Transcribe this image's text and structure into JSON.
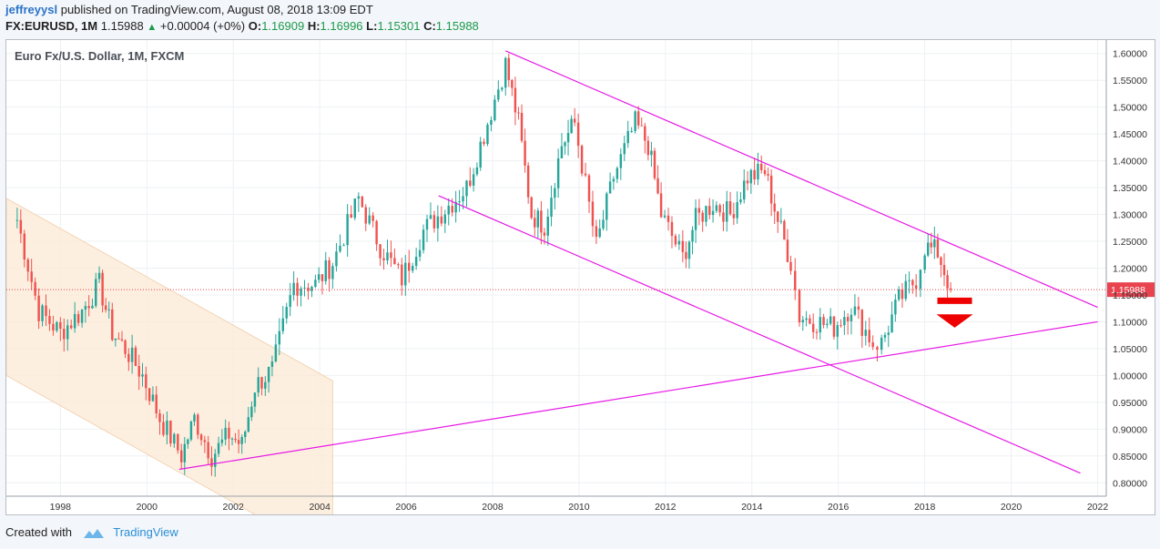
{
  "header": {
    "author": "jeffreyysl",
    "published": "published on TradingView.com, August 08, 2018 13:09 EDT",
    "symbol": "FX:EURUSD, 1M",
    "last": "1.15988",
    "change": "+0.00004 (+0%)",
    "o_label": "O:",
    "o_value": "1.16909",
    "h_label": "H:",
    "h_value": "1.16996",
    "l_label": "L:",
    "l_value": "1.15301",
    "c_label": "C:",
    "c_value": "1.15988"
  },
  "footer": {
    "created_with": "Created with",
    "brand": "TradingView"
  },
  "colors": {
    "up": "#26a69a",
    "down": "#ef5350",
    "trendline": "#e619e6",
    "channel_fill": "#fdebd7",
    "price_tag": "#e8434f"
  },
  "chart_data": {
    "type": "candlestick",
    "title": "Euro Fx/U.S. Dollar, 1M, FXCM",
    "last_price_label": "1.15988",
    "last_price": 1.15988,
    "y_ticks": [
      "0.80000",
      "0.85000",
      "0.90000",
      "0.95000",
      "1.00000",
      "1.05000",
      "1.10000",
      "1.15000",
      "1.20000",
      "1.25000",
      "1.30000",
      "1.35000",
      "1.40000",
      "1.45000",
      "1.50000",
      "1.55000",
      "1.60000"
    ],
    "x_ticks": [
      "1998",
      "2000",
      "2002",
      "2004",
      "2006",
      "2008",
      "2010",
      "2012",
      "2014",
      "2016",
      "2018",
      "2020",
      "2022"
    ],
    "xlim": [
      1996.75,
      2022.2
    ],
    "ylim": [
      0.775,
      1.625
    ],
    "monthly_close": [
      [
        1997.0,
        1.29
      ],
      [
        1997.5,
        1.12
      ],
      [
        1998.0,
        1.08
      ],
      [
        1998.5,
        1.12
      ],
      [
        1998.9,
        1.17
      ],
      [
        1999.2,
        1.08
      ],
      [
        1999.5,
        1.05
      ],
      [
        1999.9,
        1.0
      ],
      [
        2000.3,
        0.92
      ],
      [
        2000.8,
        0.85
      ],
      [
        2001.1,
        0.92
      ],
      [
        2001.5,
        0.85
      ],
      [
        2001.9,
        0.89
      ],
      [
        2002.2,
        0.87
      ],
      [
        2002.5,
        0.98
      ],
      [
        2002.9,
        1.01
      ],
      [
        2003.4,
        1.17
      ],
      [
        2003.9,
        1.17
      ],
      [
        2004.3,
        1.21
      ],
      [
        2004.9,
        1.33
      ],
      [
        2005.4,
        1.24
      ],
      [
        2005.9,
        1.18
      ],
      [
        2006.4,
        1.27
      ],
      [
        2006.9,
        1.31
      ],
      [
        2007.4,
        1.35
      ],
      [
        2007.8,
        1.45
      ],
      [
        2008.3,
        1.58
      ],
      [
        2008.6,
        1.47
      ],
      [
        2008.9,
        1.3
      ],
      [
        2009.2,
        1.28
      ],
      [
        2009.6,
        1.43
      ],
      [
        2009.9,
        1.47
      ],
      [
        2010.4,
        1.24
      ],
      [
        2010.8,
        1.37
      ],
      [
        2011.3,
        1.47
      ],
      [
        2011.6,
        1.43
      ],
      [
        2011.9,
        1.3
      ],
      [
        2012.4,
        1.22
      ],
      [
        2012.7,
        1.29
      ],
      [
        2013.1,
        1.32
      ],
      [
        2013.5,
        1.3
      ],
      [
        2013.9,
        1.37
      ],
      [
        2014.3,
        1.38
      ],
      [
        2014.6,
        1.29
      ],
      [
        2014.9,
        1.21
      ],
      [
        2015.1,
        1.11
      ],
      [
        2015.5,
        1.1
      ],
      [
        2015.9,
        1.09
      ],
      [
        2016.3,
        1.13
      ],
      [
        2016.8,
        1.06
      ],
      [
        2017.0,
        1.06
      ],
      [
        2017.4,
        1.14
      ],
      [
        2017.8,
        1.18
      ],
      [
        2018.0,
        1.24
      ],
      [
        2018.3,
        1.23
      ],
      [
        2018.6,
        1.16
      ]
    ],
    "trendlines": [
      {
        "from": [
          2008.3,
          1.605
        ],
        "to": [
          2022.0,
          1.127
        ]
      },
      {
        "from": [
          2006.75,
          1.335
        ],
        "to": [
          2021.6,
          0.818
        ]
      },
      {
        "from": [
          2000.75,
          0.825
        ],
        "to": [
          2022.0,
          1.1
        ]
      }
    ],
    "channel": [
      [
        1996.75,
        1.33
      ],
      [
        2004.3,
        0.99
      ],
      [
        2004.3,
        0.66
      ],
      [
        1996.75,
        1.0
      ]
    ]
  }
}
